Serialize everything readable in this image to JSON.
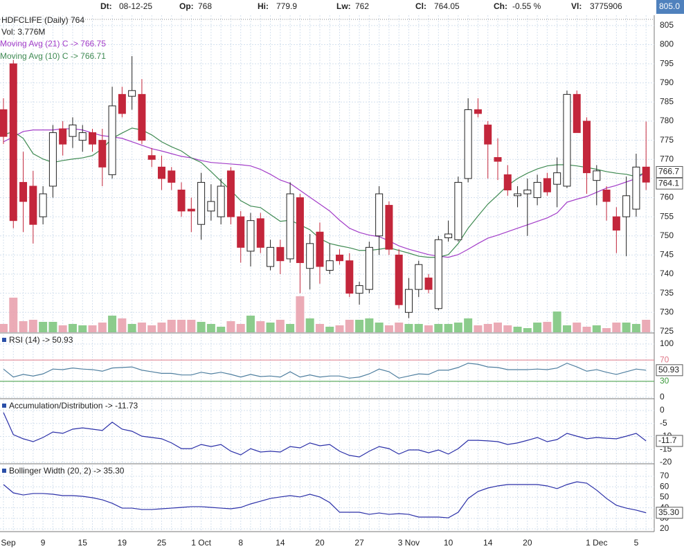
{
  "header": {
    "fields": [
      {
        "label": "Dt:",
        "value": "08-12-25"
      },
      {
        "label": "Op:",
        "value": "768"
      },
      {
        "label": "Hi:",
        "value": "779.9"
      },
      {
        "label": "Lw:",
        "value": "762"
      },
      {
        "label": "Cl:",
        "value": "764.05"
      },
      {
        "label": "Ch:",
        "value": "-0.55 %"
      },
      {
        "label": "Vl:",
        "value": "3775906"
      }
    ],
    "cursor_value": "805.0"
  },
  "chart_data": [
    {
      "type": "candlestick",
      "title": "HDFCLIFE (Daily) 764",
      "subtitle": "Vol: 3.776M",
      "categories": [
        "Sep",
        null,
        null,
        null,
        "9",
        null,
        null,
        null,
        "15",
        null,
        null,
        null,
        "19",
        null,
        null,
        null,
        "25",
        null,
        null,
        null,
        "1 Oct",
        null,
        null,
        null,
        "8",
        null,
        null,
        null,
        "14",
        null,
        null,
        null,
        "20",
        null,
        null,
        null,
        "27",
        null,
        null,
        null,
        null,
        "3 Nov",
        null,
        null,
        null,
        "10",
        null,
        null,
        null,
        "14",
        null,
        null,
        null,
        "20",
        null,
        null,
        null,
        null,
        null,
        null,
        "1 Dec",
        null,
        null,
        null,
        "5",
        null
      ],
      "open": [
        783,
        795,
        764,
        763,
        755,
        763,
        778,
        776,
        775,
        777,
        775,
        766,
        787,
        786.5,
        787,
        771,
        768,
        767,
        762,
        757,
        753,
        756.5,
        755,
        767,
        755,
        746,
        754.5,
        742,
        747,
        744,
        760,
        741.5,
        751,
        741,
        745,
        743.5,
        735,
        736,
        750,
        758,
        745,
        730,
        736,
        739,
        731,
        749.5,
        749,
        765,
        783,
        779,
        770.5,
        766,
        760.5,
        761,
        760,
        765,
        763.5,
        763,
        787,
        780,
        764.5,
        762,
        755,
        755,
        757,
        768
      ],
      "high": [
        786,
        796,
        772,
        767,
        763,
        779,
        780,
        781,
        779,
        778,
        778,
        789,
        789,
        797,
        791,
        773,
        771,
        768,
        764,
        760,
        766.5,
        763.5,
        765,
        768,
        756.5,
        756,
        756,
        749,
        749,
        764,
        761,
        750.5,
        753.5,
        748,
        746.5,
        745.5,
        738,
        748.5,
        763,
        759,
        746.5,
        739,
        743.5,
        740,
        750,
        754,
        765.5,
        786,
        786,
        780,
        775.5,
        768.5,
        763,
        765,
        766,
        766.5,
        770.5,
        788,
        788,
        781,
        768.5,
        763,
        757.5,
        765.5,
        771.5,
        779.9
      ],
      "low": [
        774,
        752,
        751,
        748,
        753,
        760,
        771,
        773,
        772,
        772,
        763,
        765,
        781,
        783,
        774,
        768,
        762,
        762,
        755,
        751,
        749,
        754,
        753,
        753,
        743,
        742,
        745.5,
        741,
        740,
        743,
        735,
        736,
        737.5,
        740,
        742.5,
        734,
        732,
        735,
        745,
        745,
        731,
        728.5,
        734,
        735,
        730.5,
        748.5,
        748.5,
        764,
        781,
        765,
        764.6,
        760.5,
        757.5,
        750,
        758,
        760.5,
        757.5,
        762.5,
        777,
        761,
        758,
        754,
        745.5,
        744.7,
        755,
        762
      ],
      "close": [
        776,
        754,
        759,
        753,
        761,
        777,
        774,
        779,
        777,
        774,
        768,
        784,
        782,
        788,
        775,
        770,
        765,
        764,
        756.5,
        756.5,
        764,
        759,
        763,
        755,
        747,
        754,
        747,
        747,
        743.5,
        761,
        743,
        748,
        742,
        743.5,
        743.5,
        735,
        737,
        747,
        761,
        746.5,
        732,
        736,
        742.5,
        736,
        749,
        750.5,
        764,
        783,
        782,
        774,
        769.5,
        762,
        761,
        762,
        764,
        761.5,
        766.5,
        787,
        777,
        766.5,
        767,
        759,
        751.5,
        760.5,
        768,
        764.05
      ],
      "close_label": "764.1",
      "volume": [
        2520000,
        10490000,
        3360000,
        3780000,
        3150000,
        3150000,
        2100000,
        2520000,
        2100000,
        2100000,
        2940000,
        5040000,
        4200000,
        2520000,
        2940000,
        2100000,
        2940000,
        3780000,
        3780000,
        3780000,
        3150000,
        2520000,
        1680000,
        3360000,
        2520000,
        5040000,
        3360000,
        2940000,
        3780000,
        2520000,
        10910000,
        4200000,
        2520000,
        1680000,
        2100000,
        3780000,
        3780000,
        4200000,
        2940000,
        2100000,
        2940000,
        2520000,
        2520000,
        2100000,
        2520000,
        2520000,
        2940000,
        4200000,
        2100000,
        2520000,
        2940000,
        2100000,
        1680000,
        1260000,
        2940000,
        3150000,
        6290000,
        2100000,
        2940000,
        1680000,
        2100000,
        1260000,
        2940000,
        2940000,
        2520000,
        3775906
      ],
      "up_color": "#ffffff",
      "down_color": "#c3263b",
      "up_volume_color": "#7fc77f",
      "down_volume_color": "#e9a2ae",
      "series": [
        {
          "name": "Moving Avg (21) C -> 766.75",
          "color": "#a23cc8",
          "values": [
            774.6,
            775.9,
            777.3,
            777.7,
            777.7,
            777.7,
            778.0,
            778.0,
            777.7,
            776.9,
            776.2,
            775.9,
            775.5,
            774.6,
            773.7,
            772.8,
            772.2,
            771.5,
            770.8,
            770.4,
            769.7,
            769.2,
            769.0,
            768.8,
            768.6,
            768.3,
            767.4,
            766.1,
            764.6,
            763.7,
            761.9,
            760.1,
            758.3,
            756.5,
            754.1,
            752.0,
            750.9,
            750.2,
            749.8,
            748.7,
            747.4,
            746.5,
            745.8,
            745.1,
            744.7,
            744.4,
            745.1,
            746.5,
            748.0,
            749.4,
            750.2,
            751.1,
            752.0,
            752.9,
            753.8,
            754.7,
            756.0,
            758.8,
            759.6,
            760.3,
            761.4,
            762.5,
            763.2,
            764.1,
            765.0,
            766.75
          ]
        },
        {
          "name": "Moving Avg (10) C -> 766.71",
          "color": "#3f8a52",
          "last_value_label": "766.7",
          "values": [
            776.4,
            777.3,
            775.5,
            771.5,
            770.1,
            769.2,
            769.7,
            770.1,
            770.4,
            771.0,
            772.8,
            775.5,
            776.9,
            778.2,
            777.7,
            776.4,
            774.6,
            773.3,
            772.2,
            770.4,
            769.2,
            766.8,
            764.3,
            761.9,
            759.2,
            757.8,
            757.4,
            755.6,
            753.8,
            754.1,
            752.9,
            751.6,
            749.3,
            748.0,
            747.4,
            746.9,
            746.2,
            746.2,
            746.5,
            746.9,
            746.2,
            745.5,
            744.7,
            744.4,
            744.4,
            745.1,
            748.0,
            752.0,
            755.2,
            758.3,
            760.7,
            763.2,
            765.0,
            766.4,
            767.5,
            768.3,
            768.6,
            768.6,
            768.3,
            767.9,
            767.4,
            766.8,
            766.4,
            766.1,
            765.5,
            766.71
          ]
        }
      ],
      "ylim": [
        724.8,
        807.7
      ],
      "yticks": [
        725,
        730,
        735,
        740,
        745,
        750,
        755,
        760,
        765,
        770,
        775,
        780,
        785,
        790,
        795,
        800,
        805
      ],
      "grid": true
    },
    {
      "type": "line",
      "series": [
        {
          "name": "RSI (14) -> 50.93",
          "color": "#4f7f9f",
          "last_value_label": "50.93",
          "values": [
            53,
            38,
            43,
            40,
            44,
            53,
            52,
            55,
            53,
            52,
            49,
            55,
            56,
            57,
            51,
            48,
            45,
            45,
            42,
            42,
            47,
            44,
            47,
            43,
            38,
            43,
            39,
            40,
            38,
            48,
            38,
            42,
            38,
            40,
            40,
            36,
            38,
            44,
            53,
            48,
            36,
            40,
            44,
            43,
            51,
            51,
            56,
            64,
            62,
            57,
            56,
            52,
            52,
            52,
            53,
            52,
            55,
            64,
            57,
            49,
            52,
            47,
            43,
            48,
            53,
            50.93
          ]
        }
      ],
      "ref_lines": [
        {
          "value": 70,
          "color": "#e07888"
        },
        {
          "value": 30,
          "color": "#3c9a3c"
        }
      ],
      "ylim": [
        -1.3,
        118.2
      ],
      "yticks": [
        100,
        70,
        30,
        0
      ],
      "grid": true
    },
    {
      "type": "line",
      "series": [
        {
          "name": "Accumulation/Distribution -> -11.73",
          "color": "#2a2fa8",
          "last_value_label": "-11.7",
          "values": [
            -0.8,
            -9.3,
            -10.9,
            -12,
            -10.4,
            -8.3,
            -8.8,
            -7.2,
            -6.7,
            -7.2,
            -7.7,
            -4.5,
            -7.2,
            -8,
            -9.9,
            -10.4,
            -10.9,
            -12.5,
            -14.7,
            -14.7,
            -13.1,
            -13.9,
            -13.1,
            -15.7,
            -17.1,
            -14.7,
            -16,
            -15.7,
            -16,
            -13.9,
            -14.4,
            -12.5,
            -13.6,
            -13.1,
            -15.7,
            -17.3,
            -17.9,
            -15.7,
            -13.9,
            -14.7,
            -16.8,
            -15.2,
            -15.2,
            -16.3,
            -15.2,
            -16.8,
            -14.7,
            -11.5,
            -11.5,
            -11.7,
            -12,
            -13.1,
            -12.5,
            -11.5,
            -10.4,
            -12,
            -11.2,
            -8.8,
            -9.9,
            -10.9,
            -10.4,
            -10.7,
            -10.9,
            -9.9,
            -8.8,
            -11.73
          ]
        }
      ],
      "ylim": [
        -20,
        4
      ],
      "yticks": [
        0,
        -5,
        -10,
        -15,
        -20
      ],
      "grid": true
    },
    {
      "type": "line",
      "series": [
        {
          "name": "Bollinger Width (20, 2) -> 35.30",
          "color": "#2a2fa8",
          "last_value_label": "35.30",
          "values": [
            62.1,
            54.2,
            52.2,
            53.6,
            53.6,
            52.9,
            51.6,
            51.6,
            50.9,
            49.6,
            47.6,
            44.3,
            39.7,
            39.7,
            38.4,
            38.4,
            39.1,
            39.7,
            40.4,
            41.1,
            41.1,
            40.4,
            39.7,
            39.1,
            40.4,
            43.7,
            46.3,
            48.9,
            50.3,
            51.6,
            50.3,
            52.9,
            50.3,
            45,
            35.8,
            35.8,
            35.8,
            33.8,
            35.1,
            33.8,
            34.5,
            33.8,
            31.2,
            31.2,
            31.2,
            30.5,
            35.8,
            48.9,
            55.5,
            58.8,
            60.8,
            62.1,
            62.1,
            62.1,
            62.1,
            60.8,
            58.2,
            62.1,
            64.7,
            63.4,
            56.8,
            48.9,
            42.4,
            39.7,
            37.8,
            35.3
          ]
        }
      ],
      "ylim": [
        17.4,
        80.5
      ],
      "yticks": [
        70,
        60,
        50,
        40,
        30,
        20
      ],
      "grid": true
    }
  ]
}
